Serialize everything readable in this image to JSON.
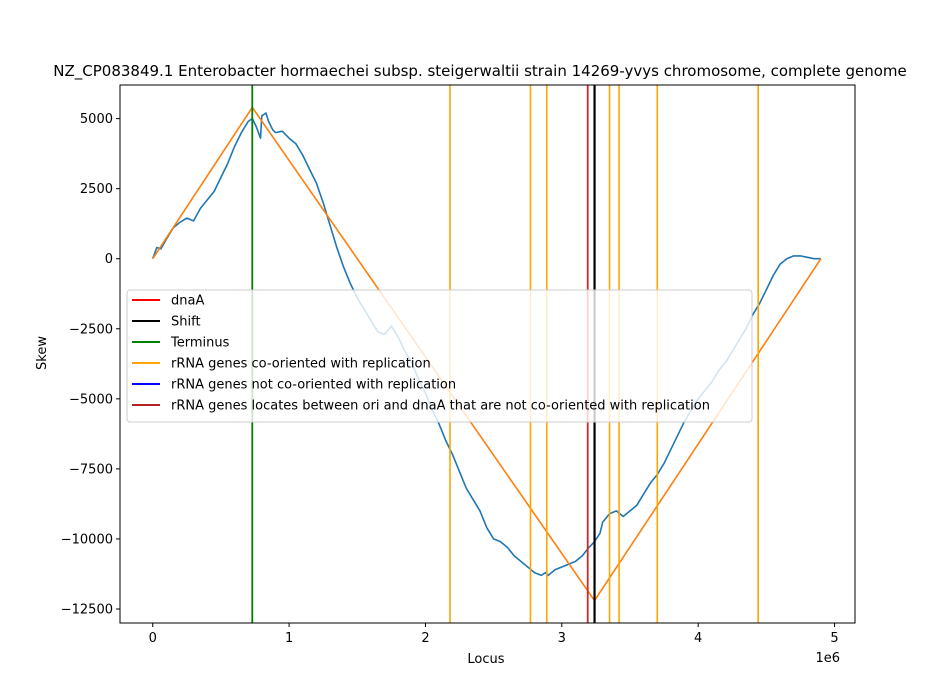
{
  "chart_data": {
    "type": "line",
    "title": "NZ_CP083849.1 Enterobacter hormaechei subsp. steigerwaltii strain 14269-yvys chromosome, complete genome",
    "xlabel": "Locus",
    "ylabel": "Skew",
    "x_offset_label": "1e6",
    "xlim": [
      -240000,
      5150000
    ],
    "ylim": [
      -13000,
      6200
    ],
    "xticks": [
      0,
      1000000,
      2000000,
      3000000,
      4000000,
      5000000
    ],
    "xtick_labels": [
      "0",
      "1",
      "2",
      "3",
      "4",
      "5"
    ],
    "yticks": [
      -12500,
      -10000,
      -7500,
      -5000,
      -2500,
      0,
      2500,
      5000
    ],
    "ytick_labels": [
      "−12500",
      "−10000",
      "−7500",
      "−5000",
      "−2500",
      "0",
      "2500",
      "5000"
    ],
    "legend_position": "center-left",
    "series": [
      {
        "kind": "skew",
        "color": "#1f77b4",
        "x": [
          0,
          30000,
          60000,
          100000,
          150000,
          200000,
          250000,
          300000,
          350000,
          400000,
          450000,
          500000,
          550000,
          600000,
          650000,
          700000,
          730000,
          760000,
          790000,
          800000,
          830000,
          850000,
          880000,
          900000,
          950000,
          1000000,
          1050000,
          1100000,
          1150000,
          1200000,
          1250000,
          1300000,
          1350000,
          1400000,
          1450000,
          1500000,
          1550000,
          1600000,
          1650000,
          1700000,
          1750000,
          1800000,
          1850000,
          1900000,
          1950000,
          2000000,
          2050000,
          2100000,
          2150000,
          2200000,
          2250000,
          2300000,
          2350000,
          2400000,
          2450000,
          2500000,
          2550000,
          2600000,
          2650000,
          2700000,
          2750000,
          2800000,
          2850000,
          2880000,
          2900000,
          2950000,
          3000000,
          3050000,
          3100000,
          3150000,
          3200000,
          3240000,
          3280000,
          3300000,
          3350000,
          3400000,
          3450000,
          3500000,
          3550000,
          3600000,
          3650000,
          3700000,
          3750000,
          3800000,
          3850000,
          3900000,
          3950000,
          4000000,
          4050000,
          4100000,
          4150000,
          4200000,
          4250000,
          4300000,
          4350000,
          4400000,
          4450000,
          4500000,
          4550000,
          4600000,
          4650000,
          4700000,
          4750000,
          4800000,
          4850000,
          4900000
        ],
        "y": [
          0,
          400,
          350,
          700,
          1100,
          1300,
          1450,
          1350,
          1800,
          2100,
          2400,
          2900,
          3400,
          4000,
          4500,
          4900,
          5000,
          4700,
          4300,
          5100,
          5200,
          4900,
          4600,
          4500,
          4550,
          4300,
          4100,
          3700,
          3200,
          2700,
          2000,
          1200,
          400,
          -300,
          -900,
          -1400,
          -1800,
          -2200,
          -2600,
          -2700,
          -2400,
          -2800,
          -3300,
          -3700,
          -4300,
          -4800,
          -5400,
          -5900,
          -6500,
          -7000,
          -7600,
          -8200,
          -8600,
          -9000,
          -9600,
          -10000,
          -10100,
          -10300,
          -10600,
          -10800,
          -11000,
          -11200,
          -11300,
          -11200,
          -11300,
          -11100,
          -11000,
          -10900,
          -10800,
          -10600,
          -10300,
          -10100,
          -9800,
          -9400,
          -9100,
          -9000,
          -9200,
          -9000,
          -8800,
          -8400,
          -8000,
          -7700,
          -7300,
          -6800,
          -6300,
          -5800,
          -5400,
          -5000,
          -4700,
          -4400,
          -4000,
          -3700,
          -3300,
          -2900,
          -2500,
          -2000,
          -1600,
          -1100,
          -600,
          -200,
          0,
          100,
          100,
          50,
          0,
          0
        ],
        "smooth_xlim": [
          0,
          4900000
        ]
      },
      {
        "kind": "fit",
        "color": "#ff7f0e",
        "x": [
          0,
          730000,
          3240000,
          4900000
        ],
        "y": [
          0,
          5400,
          -12200,
          0
        ]
      }
    ],
    "vlines": {
      "dnaA": {
        "x": 3190000,
        "color": "#d62728"
      },
      "shift": {
        "x": 3240000,
        "color": "#000000"
      },
      "terminus": {
        "x": 730000,
        "color": "#008000"
      },
      "rrna_co": {
        "x": [
          2180000,
          2770000,
          2890000,
          3350000,
          3420000,
          3700000,
          4440000
        ],
        "color": "#ffa500"
      }
    },
    "legend": [
      {
        "label": "dnaA",
        "color": "#ff0000"
      },
      {
        "label": "Shift",
        "color": "#000000"
      },
      {
        "label": "Terminus",
        "color": "#008000"
      },
      {
        "label": "rRNA genes co-oriented with replication",
        "color": "#ffa500"
      },
      {
        "label": "rRNA genes not co-oriented with replication",
        "color": "#0000ff"
      },
      {
        "label": "rRNA genes locates between ori and dnaA that are not co-oriented with replication",
        "color": "#b22222"
      }
    ]
  }
}
